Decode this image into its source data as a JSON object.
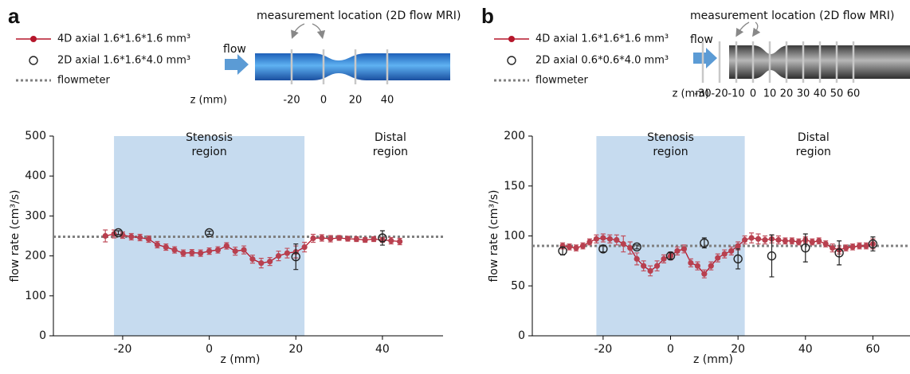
{
  "chart_data": [
    {
      "type": "line",
      "panel": "a",
      "x_label": "z (mm)",
      "y_label": "flow rate (cm³/s)",
      "xlim": [
        -36,
        54
      ],
      "xticks": [
        -20,
        0,
        20,
        40
      ],
      "ylim": [
        0,
        500
      ],
      "yticks": [
        0,
        100,
        200,
        300,
        400,
        500
      ],
      "regions": [
        {
          "label": [
            "Stenosis",
            "region"
          ],
          "x": [
            -22,
            22
          ],
          "color": "#c6dbef"
        }
      ],
      "annotations": [
        {
          "text": [
            "Distal",
            "region"
          ],
          "x": 40
        }
      ],
      "diagram": {
        "title": "measurement  location (2D flow MRI)",
        "flow_label": "flow",
        "z_label": "z (mm)",
        "z_ticks": [
          -20,
          0,
          20,
          40
        ]
      },
      "series": [
        {
          "name": "4D axial 1.6*1.6*1.6 mm³",
          "color": "#b5162b",
          "x": [
            -24,
            -22,
            -20,
            -18,
            -16,
            -14,
            -12,
            -10,
            -8,
            -6,
            -4,
            -2,
            0,
            2,
            4,
            6,
            8,
            10,
            12,
            14,
            16,
            18,
            20,
            22,
            24,
            26,
            28,
            30,
            32,
            34,
            36,
            38,
            40,
            42,
            44
          ],
          "values": [
            250,
            255,
            252,
            248,
            246,
            242,
            228,
            222,
            215,
            207,
            208,
            207,
            212,
            215,
            225,
            212,
            215,
            192,
            182,
            186,
            200,
            207,
            210,
            222,
            244,
            245,
            243,
            245,
            243,
            242,
            240,
            242,
            240,
            238,
            236
          ],
          "errors": [
            15,
            10,
            8,
            8,
            8,
            8,
            8,
            8,
            8,
            8,
            8,
            8,
            8,
            8,
            8,
            10,
            10,
            10,
            12,
            10,
            12,
            12,
            15,
            12,
            10,
            8,
            8,
            6,
            6,
            6,
            6,
            6,
            6,
            8,
            8
          ]
        },
        {
          "name": "2D axial 1.6*1.6*4.0 mm³",
          "color": "#222222",
          "marker": "open",
          "x": [
            -21,
            0,
            20,
            40
          ],
          "values": [
            258,
            258,
            198,
            245
          ],
          "errors": [
            5,
            4,
            32,
            18
          ]
        }
      ],
      "reference_lines": [
        {
          "name": "flowmeter",
          "value": 248,
          "color": "#808080"
        }
      ]
    },
    {
      "type": "line",
      "panel": "b",
      "x_label": "z (mm)",
      "y_label": "flow rate (cm³/s)",
      "xlim": [
        -41,
        71
      ],
      "xticks": [
        -20,
        0,
        20,
        40,
        60
      ],
      "ylim": [
        0,
        200
      ],
      "yticks": [
        0,
        50,
        100,
        150,
        200
      ],
      "regions": [
        {
          "label": [
            "Stenosis",
            "region"
          ],
          "x": [
            -22,
            22
          ],
          "color": "#c6dbef"
        }
      ],
      "annotations": [
        {
          "text": [
            "Distal",
            "region"
          ],
          "x": 40
        }
      ],
      "diagram": {
        "title": "measurement  location (2D flow MRI)",
        "flow_label": "flow",
        "z_label": "z (mm)",
        "z_ticks": [
          -30,
          -20,
          -10,
          0,
          10,
          20,
          30,
          40,
          50,
          60
        ]
      },
      "series": [
        {
          "name": "4D axial 1.6*1.6*1.6 mm³",
          "color": "#b5162b",
          "x": [
            -32,
            -30,
            -28,
            -26,
            -24,
            -22,
            -20,
            -18,
            -16,
            -14,
            -12,
            -10,
            -8,
            -6,
            -4,
            -2,
            0,
            2,
            4,
            6,
            8,
            10,
            12,
            14,
            16,
            18,
            20,
            22,
            24,
            26,
            28,
            30,
            32,
            34,
            36,
            38,
            40,
            42,
            44,
            46,
            48,
            50,
            52,
            54,
            56,
            58,
            60
          ],
          "values": [
            90,
            89,
            88,
            90,
            94,
            97,
            98,
            97,
            96,
            92,
            88,
            77,
            70,
            65,
            70,
            77,
            80,
            85,
            87,
            73,
            70,
            62,
            70,
            78,
            82,
            85,
            90,
            96,
            98,
            97,
            96,
            97,
            96,
            95,
            95,
            94,
            96,
            94,
            95,
            92,
            88,
            86,
            88,
            89,
            90,
            90,
            92
          ],
          "errors": [
            3,
            3,
            3,
            3,
            3,
            4,
            4,
            4,
            5,
            8,
            6,
            6,
            5,
            5,
            5,
            4,
            4,
            4,
            4,
            4,
            4,
            4,
            4,
            4,
            4,
            4,
            4,
            4,
            5,
            5,
            4,
            4,
            4,
            3,
            3,
            3,
            3,
            3,
            3,
            3,
            4,
            4,
            3,
            3,
            3,
            3,
            5
          ]
        },
        {
          "name": "2D axial 0.6*0.6*4.0 mm³",
          "color": "#222222",
          "marker": "open",
          "x": [
            -32,
            -20,
            -10,
            0,
            10,
            20,
            30,
            40,
            50,
            60
          ],
          "values": [
            85,
            87,
            89,
            80,
            93,
            77,
            80,
            88,
            83,
            92
          ],
          "errors": [
            4,
            3,
            2,
            3,
            5,
            10,
            21,
            14,
            12,
            7
          ]
        }
      ],
      "reference_lines": [
        {
          "name": "flowmeter",
          "value": 90,
          "color": "#808080"
        }
      ]
    }
  ]
}
